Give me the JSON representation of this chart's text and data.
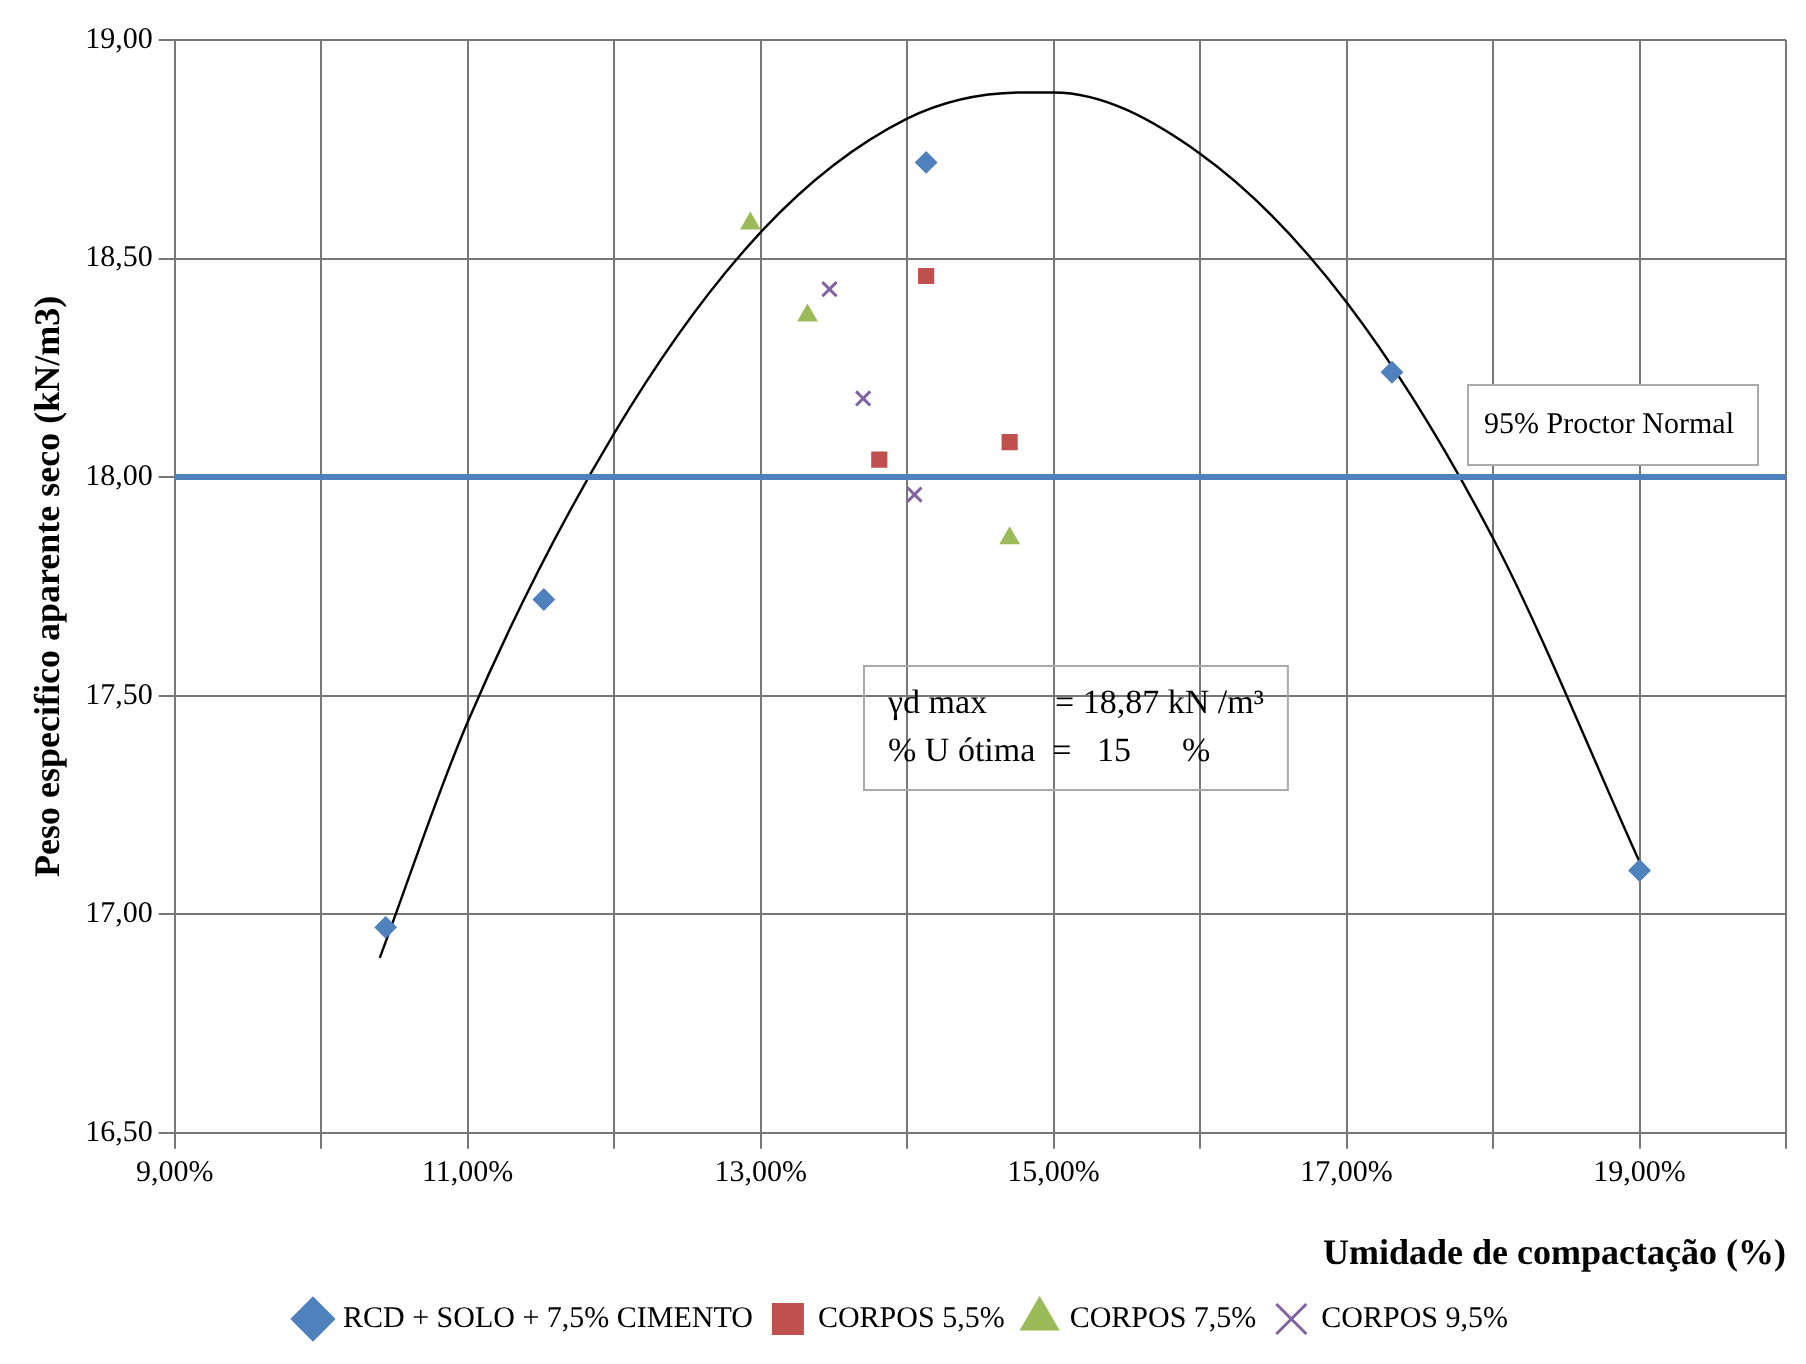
{
  "chart_data": {
    "type": "scatter",
    "xlabel": "Umidade de compactação (%)",
    "ylabel": "Peso especifico aparente seco (kN/m3)",
    "xlim": [
      9,
      20
    ],
    "ylim": [
      16.5,
      19
    ],
    "xticks": [
      {
        "value": 9,
        "label": "9,00%"
      },
      {
        "value": 10,
        "label": null
      },
      {
        "value": 11,
        "label": "11,00%"
      },
      {
        "value": 12,
        "label": null
      },
      {
        "value": 13,
        "label": "13,00%"
      },
      {
        "value": 14,
        "label": null
      },
      {
        "value": 15,
        "label": "15,00%"
      },
      {
        "value": 16,
        "label": null
      },
      {
        "value": 17,
        "label": "17,00%"
      },
      {
        "value": 18,
        "label": null
      },
      {
        "value": 19,
        "label": "19,00%"
      },
      {
        "value": 20,
        "label": null
      }
    ],
    "yticks": [
      {
        "value": 16.5,
        "label": "16,50"
      },
      {
        "value": 17,
        "label": "17,00"
      },
      {
        "value": 17.5,
        "label": "17,50"
      },
      {
        "value": 18,
        "label": "18,00"
      },
      {
        "value": 18.5,
        "label": "18,50"
      },
      {
        "value": 19,
        "label": "19,00"
      }
    ],
    "grid": true,
    "legend": "bottom",
    "series": [
      {
        "name": "RCD + SOLO + 7,5% CIMENTO",
        "color": "#4f81bd",
        "marker": "diamond",
        "x": [
          10.44,
          11.52,
          14.13,
          17.31,
          19.0
        ],
        "values": [
          16.97,
          17.72,
          18.72,
          18.24,
          17.1
        ]
      },
      {
        "name": "CORPOS 5,5%",
        "color": "#c0504d",
        "marker": "square",
        "x": [
          14.13,
          13.81,
          14.7
        ],
        "values": [
          18.46,
          18.04,
          18.08
        ]
      },
      {
        "name": "CORPOS 7,5%",
        "color": "#9bbb59",
        "marker": "triangle",
        "x": [
          12.93,
          13.32,
          14.7
        ],
        "values": [
          18.58,
          18.37,
          17.86
        ]
      },
      {
        "name": "CORPOS 9,5%",
        "color": "#8064a2",
        "marker": "cross",
        "x": [
          13.47,
          13.7,
          14.05
        ],
        "values": [
          18.43,
          18.18,
          17.96
        ]
      },
      {
        "type": "line",
        "color": "#000000",
        "marker": "none",
        "x": [
          10.4,
          11,
          12,
          13,
          14,
          14.8,
          15,
          16,
          17,
          18,
          19
        ],
        "values": [
          16.9,
          17.44,
          18.1,
          18.56,
          18.82,
          18.88,
          18.88,
          18.74,
          18.4,
          17.86,
          17.12
        ]
      }
    ],
    "ref_lines": [
      {
        "axis": "y",
        "value": 18,
        "label": "95% Proctor Normal",
        "color": "#4f81bd"
      }
    ],
    "annotations": [
      "γd max        = 18,87 kN /m³",
      "% U ótima  =   15      %"
    ]
  }
}
